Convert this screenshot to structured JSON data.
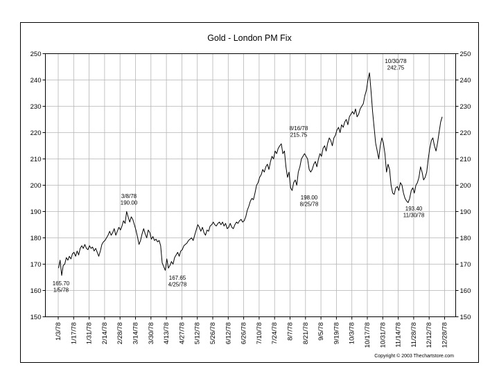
{
  "chart_data": {
    "type": "line",
    "title": "Gold - London PM Fix",
    "xlabel": "",
    "ylabel": "",
    "ylim": [
      150,
      250
    ],
    "y_ticks": [
      150,
      160,
      170,
      180,
      190,
      200,
      210,
      220,
      230,
      240,
      250
    ],
    "x_tick_labels": [
      "1/3/78",
      "1/17/78",
      "1/31/78",
      "2/14/78",
      "2/28/78",
      "3/14/78",
      "3/30/78",
      "4/13/78",
      "4/27/78",
      "5/12/78",
      "5/26/78",
      "6/12/78",
      "6/26/78",
      "7/10/78",
      "7/24/78",
      "8/7/78",
      "8/21/78",
      "9/5/78",
      "9/19/78",
      "10/3/78",
      "10/17/78",
      "10/31/78",
      "11/14/78",
      "11/28/78",
      "12/12/78",
      "12/28/78"
    ],
    "grid": true,
    "series": [
      {
        "color": "#000000",
        "values": [
          168.5,
          171.5,
          165.7,
          169.5,
          170,
          172.5,
          171.5,
          173,
          172,
          174,
          174.5,
          173,
          175,
          173.5,
          176,
          177,
          176,
          177.5,
          176,
          175.5,
          177,
          176,
          176.5,
          175,
          176,
          174.5,
          173,
          175,
          177.5,
          178.5,
          179,
          180,
          181,
          182.5,
          181,
          182,
          183.5,
          181,
          182.5,
          184,
          183,
          184.5,
          186.5,
          185.5,
          190,
          188,
          186,
          188,
          187,
          185,
          183,
          180.5,
          177.5,
          179,
          181.5,
          183.5,
          181.5,
          180,
          183,
          182,
          179.5,
          180.5,
          179,
          179.5,
          178.5,
          179,
          177,
          170.5,
          169,
          167.65,
          172,
          168.5,
          169.5,
          171,
          170,
          172.5,
          173.5,
          174.5,
          173,
          175,
          175.5,
          177,
          177.5,
          178,
          179,
          179.5,
          180,
          179,
          181,
          183,
          185,
          184,
          182.5,
          184,
          182,
          181,
          183,
          182.5,
          184.5,
          185,
          186,
          185,
          184.5,
          185.5,
          186,
          185,
          186,
          184.5,
          185.5,
          183.5,
          184,
          185.5,
          184,
          183.5,
          185,
          186,
          185.5,
          186.5,
          187,
          186,
          186.5,
          188,
          190.5,
          192,
          194,
          195,
          194.5,
          197,
          200,
          201,
          203,
          204,
          206,
          205,
          207,
          208,
          206,
          209,
          211,
          210,
          213,
          212,
          214,
          215,
          215.75,
          212,
          213,
          207,
          203,
          205,
          199,
          198,
          201,
          202,
          200,
          205,
          207,
          210,
          211,
          212,
          211,
          210,
          206,
          205,
          206,
          208,
          209,
          207,
          210,
          212,
          211,
          214,
          215,
          213,
          216,
          218,
          217,
          215,
          218,
          219,
          221,
          222,
          220,
          223,
          222,
          224,
          225,
          223,
          226,
          227,
          228,
          227,
          229,
          226,
          227,
          229,
          230,
          231,
          234,
          236,
          240,
          242.75,
          236,
          228,
          222,
          216,
          213,
          210,
          215,
          218,
          216,
          212,
          205,
          208,
          206,
          200,
          197,
          196.5,
          199,
          199.5,
          198,
          201,
          200,
          197,
          195,
          194,
          193.4,
          195,
          198,
          199,
          197,
          200,
          201,
          203,
          207,
          205,
          202,
          203,
          205,
          210,
          214,
          217,
          218,
          215,
          213,
          216,
          220,
          224,
          226
        ]
      }
    ],
    "annotations": [
      {
        "lines": [
          "165.70",
          "1/5/78"
        ]
      },
      {
        "lines": [
          "3/8/78",
          "190.00"
        ]
      },
      {
        "lines": [
          "167.65",
          "4/25/78"
        ]
      },
      {
        "lines": [
          "8/16/78",
          "215.75"
        ]
      },
      {
        "lines": [
          "198.00",
          "8/25/78"
        ]
      },
      {
        "lines": [
          "10/30/78",
          "242.75"
        ]
      },
      {
        "lines": [
          "193.40",
          "11/30/78"
        ]
      }
    ],
    "footer": "Copyright © 2003 Thechartstore.com"
  }
}
